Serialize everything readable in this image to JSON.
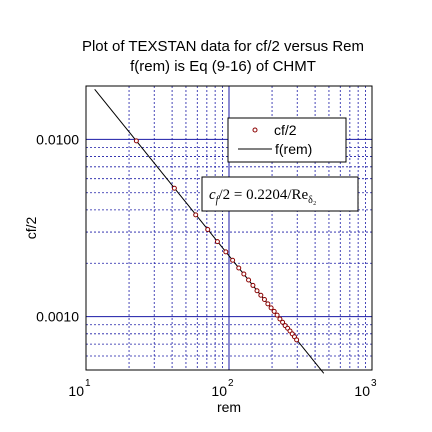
{
  "chart_data": {
    "type": "scatter",
    "title_line1": "Plot of TEXSTAN data for cf/2 versus Rem",
    "title_line2": "f(rem) is Eq (9-16) of CHMT",
    "xlabel": "rem",
    "ylabel": "cf/2",
    "x_scale": "log",
    "y_scale": "log",
    "xlim": [
      10,
      1000
    ],
    "ylim": [
      0.0005,
      0.02
    ],
    "grid": true,
    "x_ticks": [
      {
        "value": 10,
        "base": "10",
        "exp": "1"
      },
      {
        "value": 100,
        "base": "10",
        "exp": "2"
      },
      {
        "value": 1000,
        "base": "10",
        "exp": "3"
      }
    ],
    "y_ticks": [
      {
        "value": 0.01,
        "label": "0.0100"
      },
      {
        "value": 0.001,
        "label": "0.0010"
      }
    ],
    "legend": {
      "placement": "top-right",
      "markers_label": "cf/2",
      "line_label": "f(rem)"
    },
    "annotation": {
      "lhs_sym": "c",
      "lhs_sub": "f",
      "mid": "/2 = 0.2204/Re",
      "rhs_sub": "δ₂"
    },
    "line": {
      "name": "f(rem)",
      "coefficient": 0.2204,
      "exponent": -1,
      "x_range": [
        11.5,
        460
      ]
    },
    "series": [
      {
        "name": "cf/2",
        "color": "#8b0000",
        "points": [
          {
            "x": 22.5,
            "y": 0.0098
          },
          {
            "x": 41.5,
            "y": 0.0053
          },
          {
            "x": 58.5,
            "y": 0.00375
          },
          {
            "x": 71,
            "y": 0.0031
          },
          {
            "x": 83,
            "y": 0.00265
          },
          {
            "x": 95,
            "y": 0.00232
          },
          {
            "x": 106,
            "y": 0.00208
          },
          {
            "x": 117,
            "y": 0.00188
          },
          {
            "x": 127,
            "y": 0.00174
          },
          {
            "x": 137,
            "y": 0.00161
          },
          {
            "x": 147,
            "y": 0.0015
          },
          {
            "x": 157,
            "y": 0.0014
          },
          {
            "x": 167,
            "y": 0.00132
          },
          {
            "x": 177,
            "y": 0.00125
          },
          {
            "x": 187,
            "y": 0.00118
          },
          {
            "x": 197,
            "y": 0.00112
          },
          {
            "x": 207,
            "y": 0.00107
          },
          {
            "x": 217,
            "y": 0.00102
          },
          {
            "x": 227,
            "y": 0.00097
          },
          {
            "x": 237,
            "y": 0.00093
          },
          {
            "x": 247,
            "y": 0.00089
          },
          {
            "x": 257,
            "y": 0.00086
          },
          {
            "x": 267,
            "y": 0.00083
          },
          {
            "x": 277,
            "y": 0.0008
          },
          {
            "x": 287,
            "y": 0.00077
          },
          {
            "x": 297,
            "y": 0.00074
          }
        ]
      }
    ]
  }
}
